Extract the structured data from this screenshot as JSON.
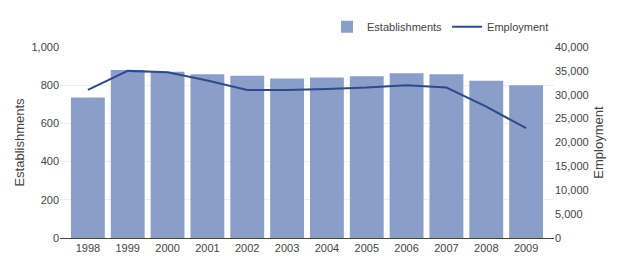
{
  "chart_data": {
    "type": "bar",
    "x": [
      1998,
      1999,
      2000,
      2001,
      2002,
      2003,
      2004,
      2005,
      2006,
      2007,
      2008,
      2009
    ],
    "xlim": [
      1997.3,
      2009.7
    ],
    "xticks": [
      1998,
      1999,
      2000,
      2001,
      2002,
      2003,
      2004,
      2005,
      2006,
      2007,
      2008,
      2009
    ],
    "ylabel": "Establishments",
    "y2label": "Employment",
    "ylim": [
      0,
      1000
    ],
    "yticks": [
      0,
      200,
      400,
      600,
      800,
      {
        "value": 1000,
        "label": "1,000"
      }
    ],
    "y2lim": [
      0,
      40000
    ],
    "y2ticks": [
      0,
      {
        "value": 5000,
        "label": "5,000"
      },
      {
        "value": 10000,
        "label": "10,000"
      },
      {
        "value": 15000,
        "label": "15,000"
      },
      {
        "value": 20000,
        "label": "20,000"
      },
      {
        "value": 25000,
        "label": "25,000"
      },
      {
        "value": 30000,
        "label": "30,000"
      },
      {
        "value": 35000,
        "label": "35,000"
      },
      {
        "value": 40000,
        "label": "40,000"
      }
    ],
    "grid": true,
    "legend": "upper right",
    "series": [
      {
        "name": "Establishments",
        "type": "bar",
        "color": "#8b9dc9",
        "values": [
          735,
          880,
          870,
          857,
          850,
          835,
          840,
          847,
          862,
          857,
          823,
          800
        ]
      },
      {
        "name": "Employment",
        "type": "line",
        "color": "#2f4a8b",
        "axis": "y2",
        "values": [
          31000,
          35000,
          34700,
          33000,
          31000,
          31000,
          31200,
          31500,
          32000,
          31500,
          27500,
          23000
        ]
      }
    ]
  }
}
